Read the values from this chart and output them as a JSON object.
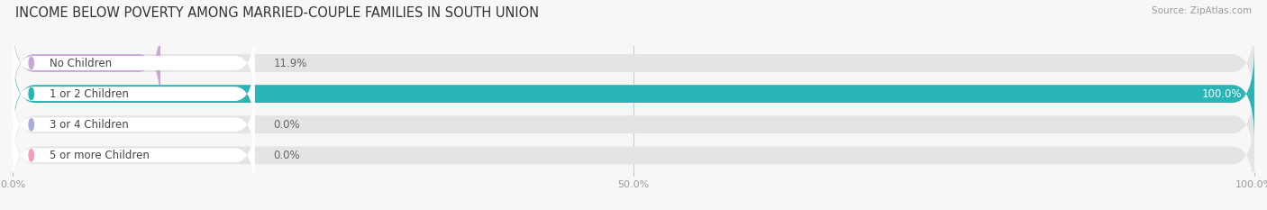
{
  "title": "INCOME BELOW POVERTY AMONG MARRIED-COUPLE FAMILIES IN SOUTH UNION",
  "source": "Source: ZipAtlas.com",
  "categories": [
    "No Children",
    "1 or 2 Children",
    "3 or 4 Children",
    "5 or more Children"
  ],
  "values": [
    11.9,
    100.0,
    0.0,
    0.0
  ],
  "bar_colors": [
    "#c9a8d4",
    "#29b4b6",
    "#aaaae0",
    "#f4a0b8"
  ],
  "background_color": "#f7f7f7",
  "bar_bg_color": "#e4e4e4",
  "xlim": [
    0,
    100
  ],
  "xticks": [
    0,
    50,
    100
  ],
  "xticklabels": [
    "0.0%",
    "50.0%",
    "100.0%"
  ],
  "title_fontsize": 10.5,
  "label_fontsize": 8.5,
  "value_fontsize": 8.5,
  "bar_height": 0.58,
  "figsize": [
    14.06,
    2.33
  ],
  "dpi": 100
}
